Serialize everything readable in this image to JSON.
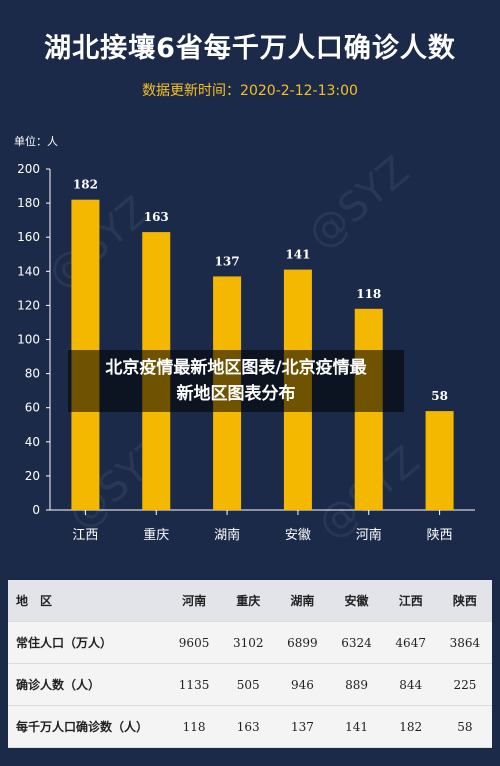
{
  "title": "湖北接壤6省每千万人口确诊人数",
  "subtitle": "数据更新时间：2020-2-12-13:00",
  "unit_label": "单位：人",
  "watermark": "@SYZ",
  "overlay": {
    "line1": "北京疫情最新地区图表/北京疫情最",
    "line2": "新地区图表分布"
  },
  "colors": {
    "background": "#1c2a4a",
    "bar": "#f5b800",
    "accent": "#f5c022"
  },
  "chart_data": {
    "type": "bar",
    "categories": [
      "江西",
      "重庆",
      "湖南",
      "安徽",
      "河南",
      "陕西"
    ],
    "values": [
      182,
      163,
      137,
      141,
      118,
      58
    ],
    "ylim": [
      0,
      200
    ],
    "yticks": [
      0,
      20,
      40,
      60,
      80,
      100,
      120,
      140,
      160,
      180,
      200
    ],
    "title": "湖北接壤6省每千万人口确诊人数",
    "ylabel": "单位：人",
    "grid": false
  },
  "table": {
    "headers": [
      "地　区",
      "河南",
      "重庆",
      "湖南",
      "安徽",
      "江西",
      "陕西"
    ],
    "rows": [
      {
        "label": "常住人口（万人）",
        "values": [
          "9605",
          "3102",
          "6899",
          "6324",
          "4647",
          "3864"
        ]
      },
      {
        "label": "确诊人数（人）",
        "values": [
          "1135",
          "505",
          "946",
          "889",
          "844",
          "225"
        ]
      },
      {
        "label": "每千万人口确诊数（人）",
        "values": [
          "118",
          "163",
          "137",
          "141",
          "182",
          "58"
        ]
      }
    ]
  }
}
